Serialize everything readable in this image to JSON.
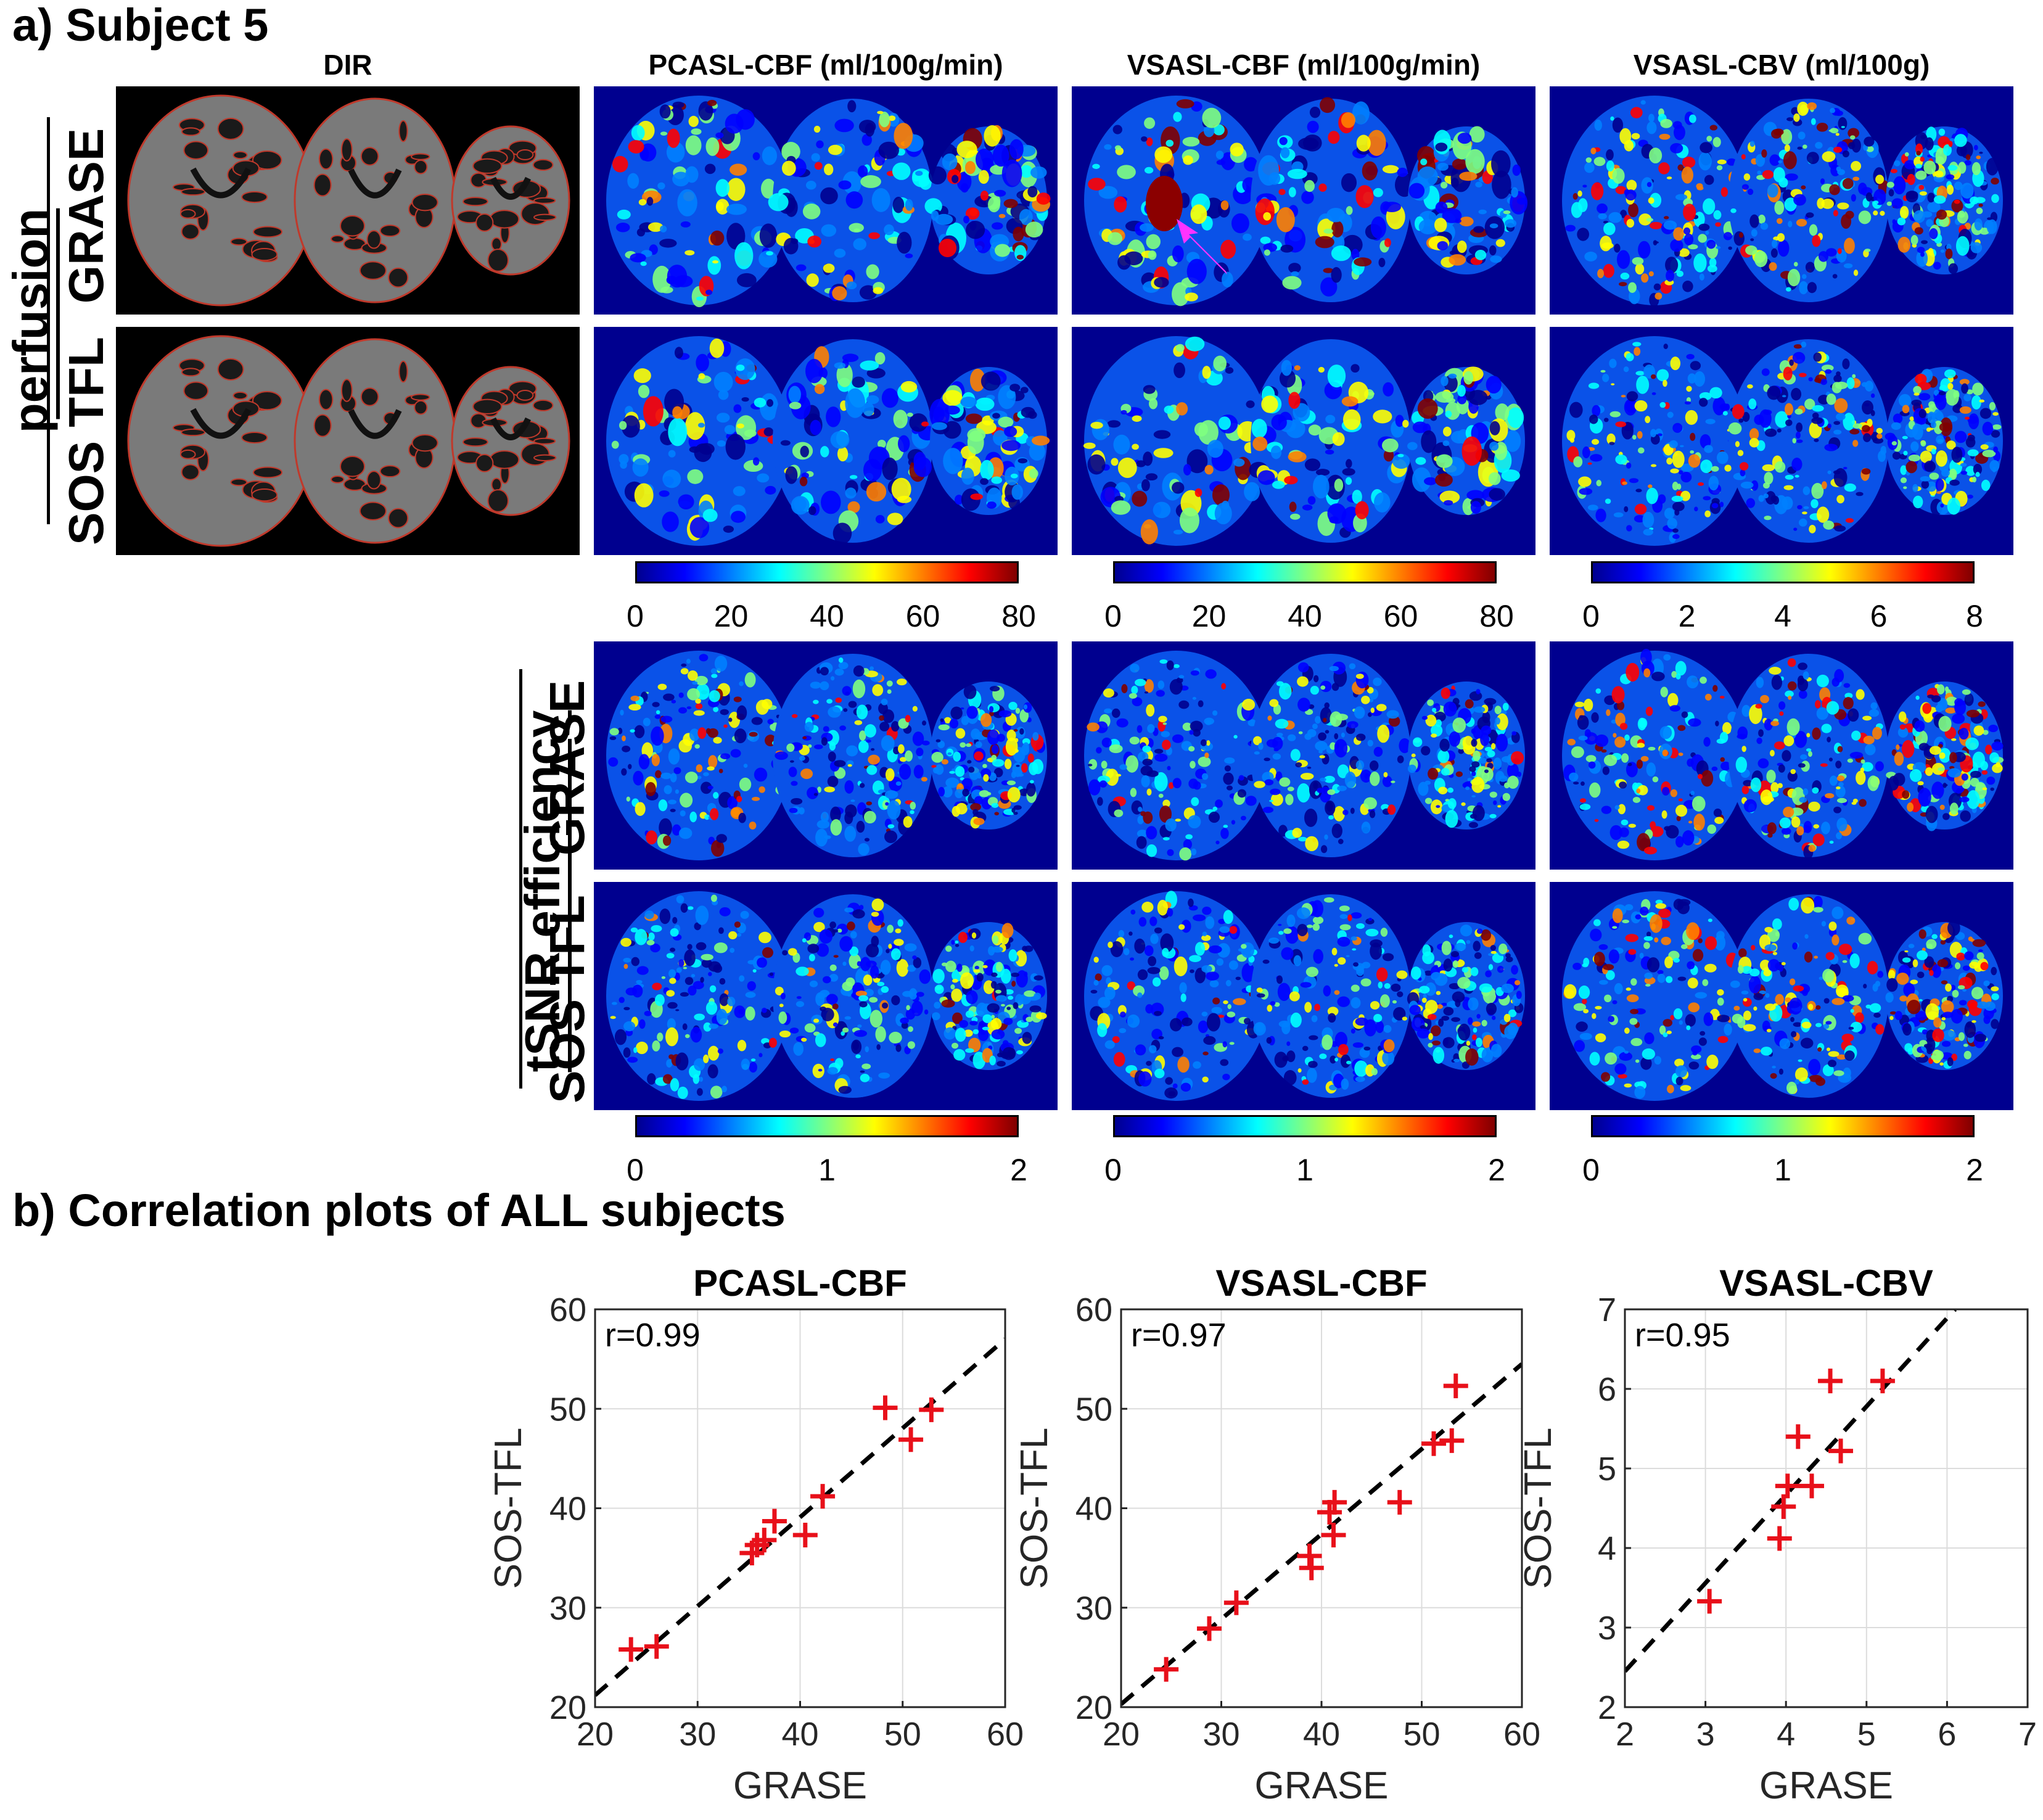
{
  "section_a_title": "a) Subject 5",
  "section_b_title": "b) Correlation plots of ALL subjects",
  "column_headers": [
    "DIR",
    "PCASL-CBF (ml/100g/min)",
    "VSASL-CBF (ml/100g/min)",
    "VSASL-CBV (ml/100g)"
  ],
  "perfusion": {
    "group_label": "perfusion",
    "row_labels": [
      "GRASE",
      "SOS TFL"
    ]
  },
  "tsnr": {
    "group_label": "tSNR efficiency",
    "row_labels": [
      "GRASE",
      "SOS TFL"
    ]
  },
  "colormap": [
    "#00008f",
    "#0000ff",
    "#0080ff",
    "#00ffff",
    "#80ff80",
    "#ffff00",
    "#ff8000",
    "#ff0000",
    "#800000"
  ],
  "colorbars": {
    "perfusion": [
      {
        "ticks": [
          "0",
          "20",
          "40",
          "60",
          "80"
        ]
      },
      {
        "ticks": [
          "0",
          "20",
          "40",
          "60",
          "80"
        ]
      },
      {
        "ticks": [
          "0",
          "2",
          "4",
          "6",
          "8"
        ]
      }
    ],
    "tsnr": [
      {
        "ticks": [
          "0",
          "1",
          "2"
        ]
      },
      {
        "ticks": [
          "0",
          "1",
          "2"
        ]
      },
      {
        "ticks": [
          "0",
          "1",
          "2"
        ]
      }
    ]
  },
  "chart_data": [
    {
      "type": "scatter",
      "title": "PCASL-CBF",
      "xlabel": "GRASE",
      "ylabel": "SOS-TFL",
      "annotation": "r=0.99",
      "xlim": [
        20,
        60
      ],
      "ylim": [
        20,
        60
      ],
      "xticks": [
        20,
        30,
        40,
        50,
        60
      ],
      "yticks": [
        20,
        30,
        40,
        50,
        60
      ],
      "grid": true,
      "marker": "+",
      "marker_color": "#e8101a",
      "x": [
        23.5,
        26.0,
        35.3,
        35.8,
        36.5,
        37.5,
        40.5,
        42.2,
        48.3,
        50.8,
        52.8
      ],
      "y": [
        25.8,
        26.1,
        35.5,
        36.3,
        36.8,
        38.7,
        37.3,
        41.2,
        50.1,
        46.9,
        49.9
      ],
      "fit_line": {
        "style": "dashed",
        "color": "#000000",
        "from": [
          20,
          21.2
        ],
        "to": [
          60,
          57.0
        ]
      }
    },
    {
      "type": "scatter",
      "title": "VSASL-CBF",
      "xlabel": "GRASE",
      "ylabel": "SOS-TFL",
      "annotation": "r=0.97",
      "xlim": [
        20,
        60
      ],
      "ylim": [
        20,
        60
      ],
      "xticks": [
        20,
        30,
        40,
        50,
        60
      ],
      "yticks": [
        20,
        30,
        40,
        50,
        60
      ],
      "grid": true,
      "marker": "+",
      "marker_color": "#e8101a",
      "x": [
        24.5,
        28.8,
        31.5,
        38.8,
        39.0,
        40.8,
        41.2,
        41.3,
        47.8,
        51.2,
        53.0,
        53.4
      ],
      "y": [
        23.8,
        27.9,
        30.5,
        35.2,
        34.0,
        39.6,
        37.3,
        40.6,
        40.6,
        46.5,
        46.8,
        52.3
      ],
      "fit_line": {
        "style": "dashed",
        "color": "#000000",
        "from": [
          20,
          20.3
        ],
        "to": [
          60,
          54.5
        ]
      }
    },
    {
      "type": "scatter",
      "title": "VSASL-CBV",
      "xlabel": "GRASE",
      "ylabel": "SOS-TFL",
      "annotation": "r=0.95",
      "xlim": [
        2,
        7
      ],
      "ylim": [
        2,
        7
      ],
      "xticks": [
        2,
        3,
        4,
        5,
        6,
        7
      ],
      "yticks": [
        2,
        3,
        4,
        5,
        6,
        7
      ],
      "grid": true,
      "marker": "+",
      "marker_color": "#e8101a",
      "x": [
        3.05,
        3.92,
        3.97,
        4.02,
        4.15,
        4.32,
        4.55,
        4.68,
        5.2
      ],
      "y": [
        3.33,
        4.12,
        4.52,
        4.78,
        5.4,
        4.78,
        6.1,
        5.22,
        6.1
      ],
      "fit_line": {
        "style": "dashed",
        "color": "#000000",
        "from": [
          2,
          2.45
        ],
        "to": [
          6.1,
          7.0
        ]
      }
    }
  ]
}
